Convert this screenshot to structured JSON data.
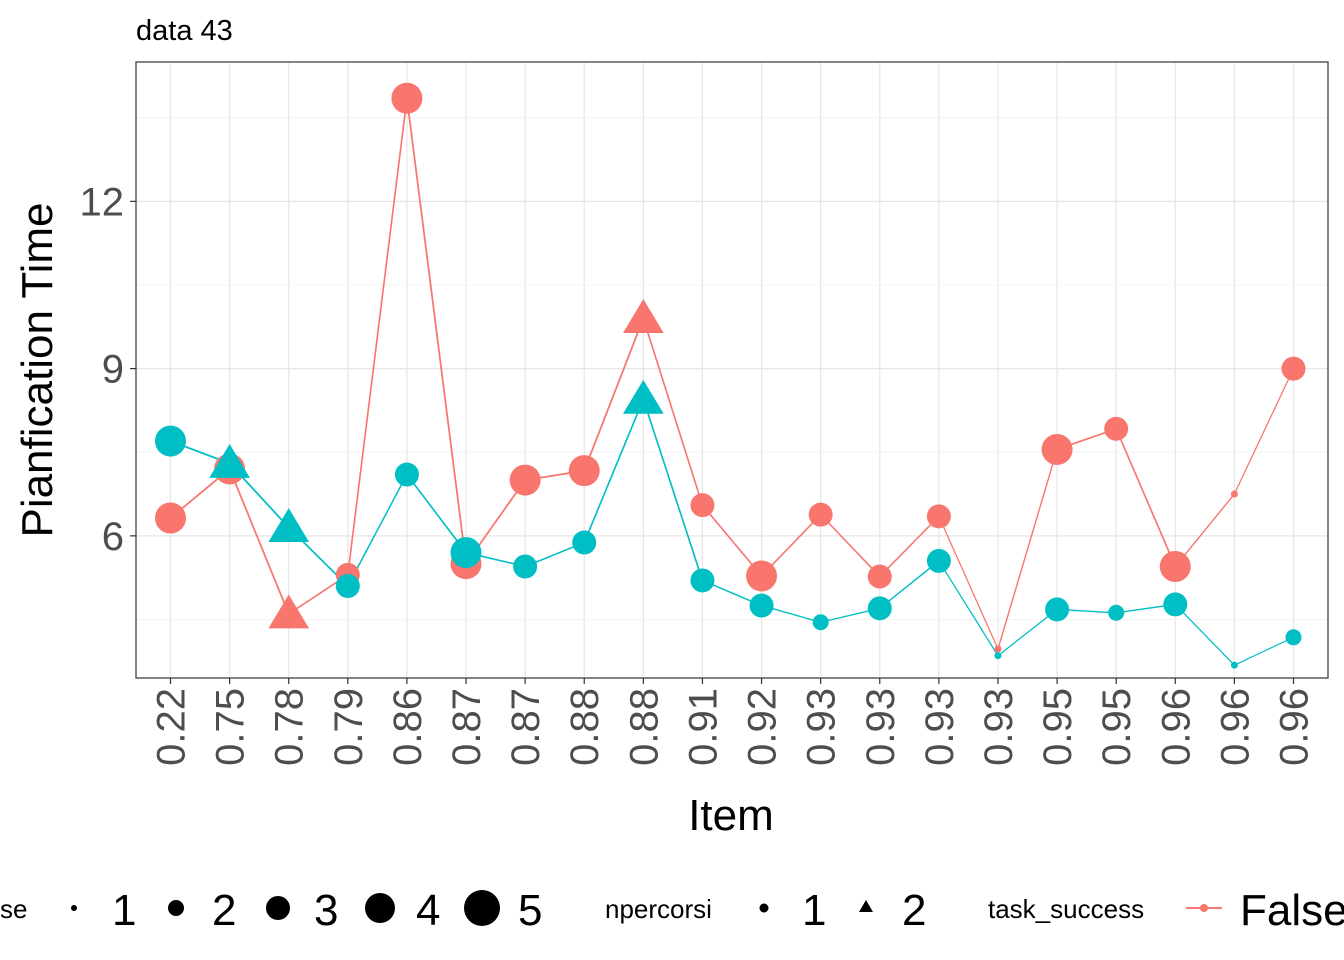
{
  "chart_data": {
    "type": "line",
    "title": "data 43",
    "xlabel": "Item",
    "ylabel": "Pianfication Time",
    "categories": [
      "0.22",
      "0.75",
      "0.78",
      "0.79",
      "0.86",
      "0.87",
      "0.87",
      "0.88",
      "0.88",
      "0.91",
      "0.92",
      "0.93",
      "0.93",
      "0.93",
      "0.93",
      "0.95",
      "0.95",
      "0.96",
      "0.96",
      "0.96"
    ],
    "yticks": [
      6,
      9,
      12
    ],
    "ylim": [
      3.45,
      14.5
    ],
    "grid": true,
    "series": [
      {
        "name": "False",
        "color": "#F8766D",
        "values": [
          6.32,
          7.2,
          4.6,
          5.3,
          13.85,
          5.5,
          7.0,
          7.17,
          9.9,
          6.55,
          5.28,
          6.38,
          5.27,
          6.35,
          3.97,
          7.55,
          7.92,
          5.45,
          6.75,
          9.0
        ],
        "size": [
          4,
          4,
          4,
          3,
          4,
          4,
          4,
          4,
          4,
          3,
          4,
          3,
          3,
          3,
          1,
          4,
          3,
          4,
          1,
          3
        ],
        "npercorsi": [
          1,
          1,
          2,
          1,
          1,
          1,
          1,
          1,
          2,
          1,
          1,
          1,
          1,
          1,
          1,
          1,
          1,
          1,
          1,
          1
        ]
      },
      {
        "name": "",
        "color": "#00BFC4",
        "values": [
          7.7,
          7.3,
          6.15,
          5.1,
          7.1,
          5.7,
          5.45,
          5.88,
          8.45,
          5.2,
          4.75,
          4.45,
          4.7,
          5.55,
          3.85,
          4.68,
          4.62,
          4.77,
          3.68,
          4.18
        ],
        "size": [
          4,
          4,
          4,
          3,
          3,
          4,
          3,
          3,
          4,
          3,
          3,
          2,
          3,
          3,
          1,
          3,
          2,
          3,
          1,
          2
        ],
        "npercorsi": [
          1,
          2,
          2,
          1,
          1,
          1,
          1,
          1,
          2,
          1,
          1,
          1,
          1,
          1,
          1,
          1,
          1,
          1,
          1,
          1
        ]
      }
    ],
    "legends": [
      {
        "title": "se",
        "labels": [
          "1",
          "2",
          "3",
          "4",
          "5"
        ]
      },
      {
        "title": "npercorsi",
        "labels": [
          "1",
          "2"
        ]
      },
      {
        "title": "task_success",
        "labels": [
          "False"
        ]
      }
    ]
  }
}
